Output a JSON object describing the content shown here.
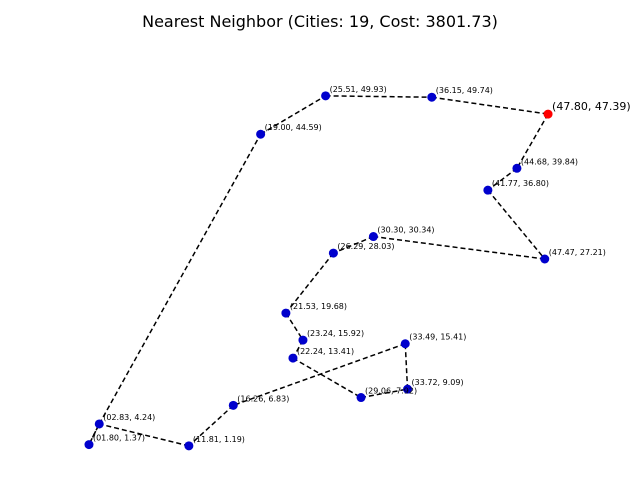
{
  "chart_data": {
    "type": "scatter",
    "title": "Nearest Neighbor (Cities: 19, Cost: 3801.73)",
    "xlabel": "",
    "ylabel": "",
    "axes_visible": false,
    "grid": false,
    "xlim": [
      0.9,
      50.6
    ],
    "ylim": [
      -0.5,
      55.2
    ],
    "colors": {
      "city": "#0000cd",
      "start": "#ff0000",
      "edge": "#000000"
    },
    "points": [
      {
        "label": "(47.80, 47.39)",
        "x": 47.8,
        "y": 47.39,
        "start": true
      },
      {
        "label": "(44.68, 39.84)",
        "x": 44.68,
        "y": 39.84
      },
      {
        "label": "(41.77, 36.80)",
        "x": 41.77,
        "y": 36.8
      },
      {
        "label": "(47.47, 27.21)",
        "x": 47.47,
        "y": 27.21
      },
      {
        "label": "(30.30, 30.34)",
        "x": 30.3,
        "y": 30.34
      },
      {
        "label": "(26.29, 28.03)",
        "x": 26.29,
        "y": 28.03
      },
      {
        "label": "(21.53, 19.68)",
        "x": 21.53,
        "y": 19.68
      },
      {
        "label": "(23.24, 15.92)",
        "x": 23.24,
        "y": 15.92
      },
      {
        "label": "(22.24, 13.41)",
        "x": 22.24,
        "y": 13.41
      },
      {
        "label": "(29.06, 7.92)",
        "x": 29.06,
        "y": 7.92
      },
      {
        "label": "(33.72,  9.09)",
        "x": 33.72,
        "y": 9.09
      },
      {
        "label": "(33.49, 15.41)",
        "x": 33.49,
        "y": 15.41
      },
      {
        "label": "(16.26,  6.83)",
        "x": 16.26,
        "y": 6.83
      },
      {
        "label": "(11.81,  1.19)",
        "x": 11.81,
        "y": 1.19
      },
      {
        "label": "(01.80,  1.37)",
        "x": 1.8,
        "y": 1.37
      },
      {
        "label": "(02.83,  4.24)",
        "x": 2.83,
        "y": 4.24
      },
      {
        "label": "(19.00, 44.59)",
        "x": 19.0,
        "y": 44.59
      },
      {
        "label": "(25.51, 49.93)",
        "x": 25.51,
        "y": 49.93
      },
      {
        "label": "(36.15, 49.74)",
        "x": 36.15,
        "y": 49.74
      }
    ],
    "route": [
      0,
      1,
      2,
      3,
      4,
      5,
      6,
      7,
      8,
      9,
      10,
      11,
      12,
      13,
      15,
      14,
      15,
      16,
      17,
      18,
      0
    ]
  }
}
